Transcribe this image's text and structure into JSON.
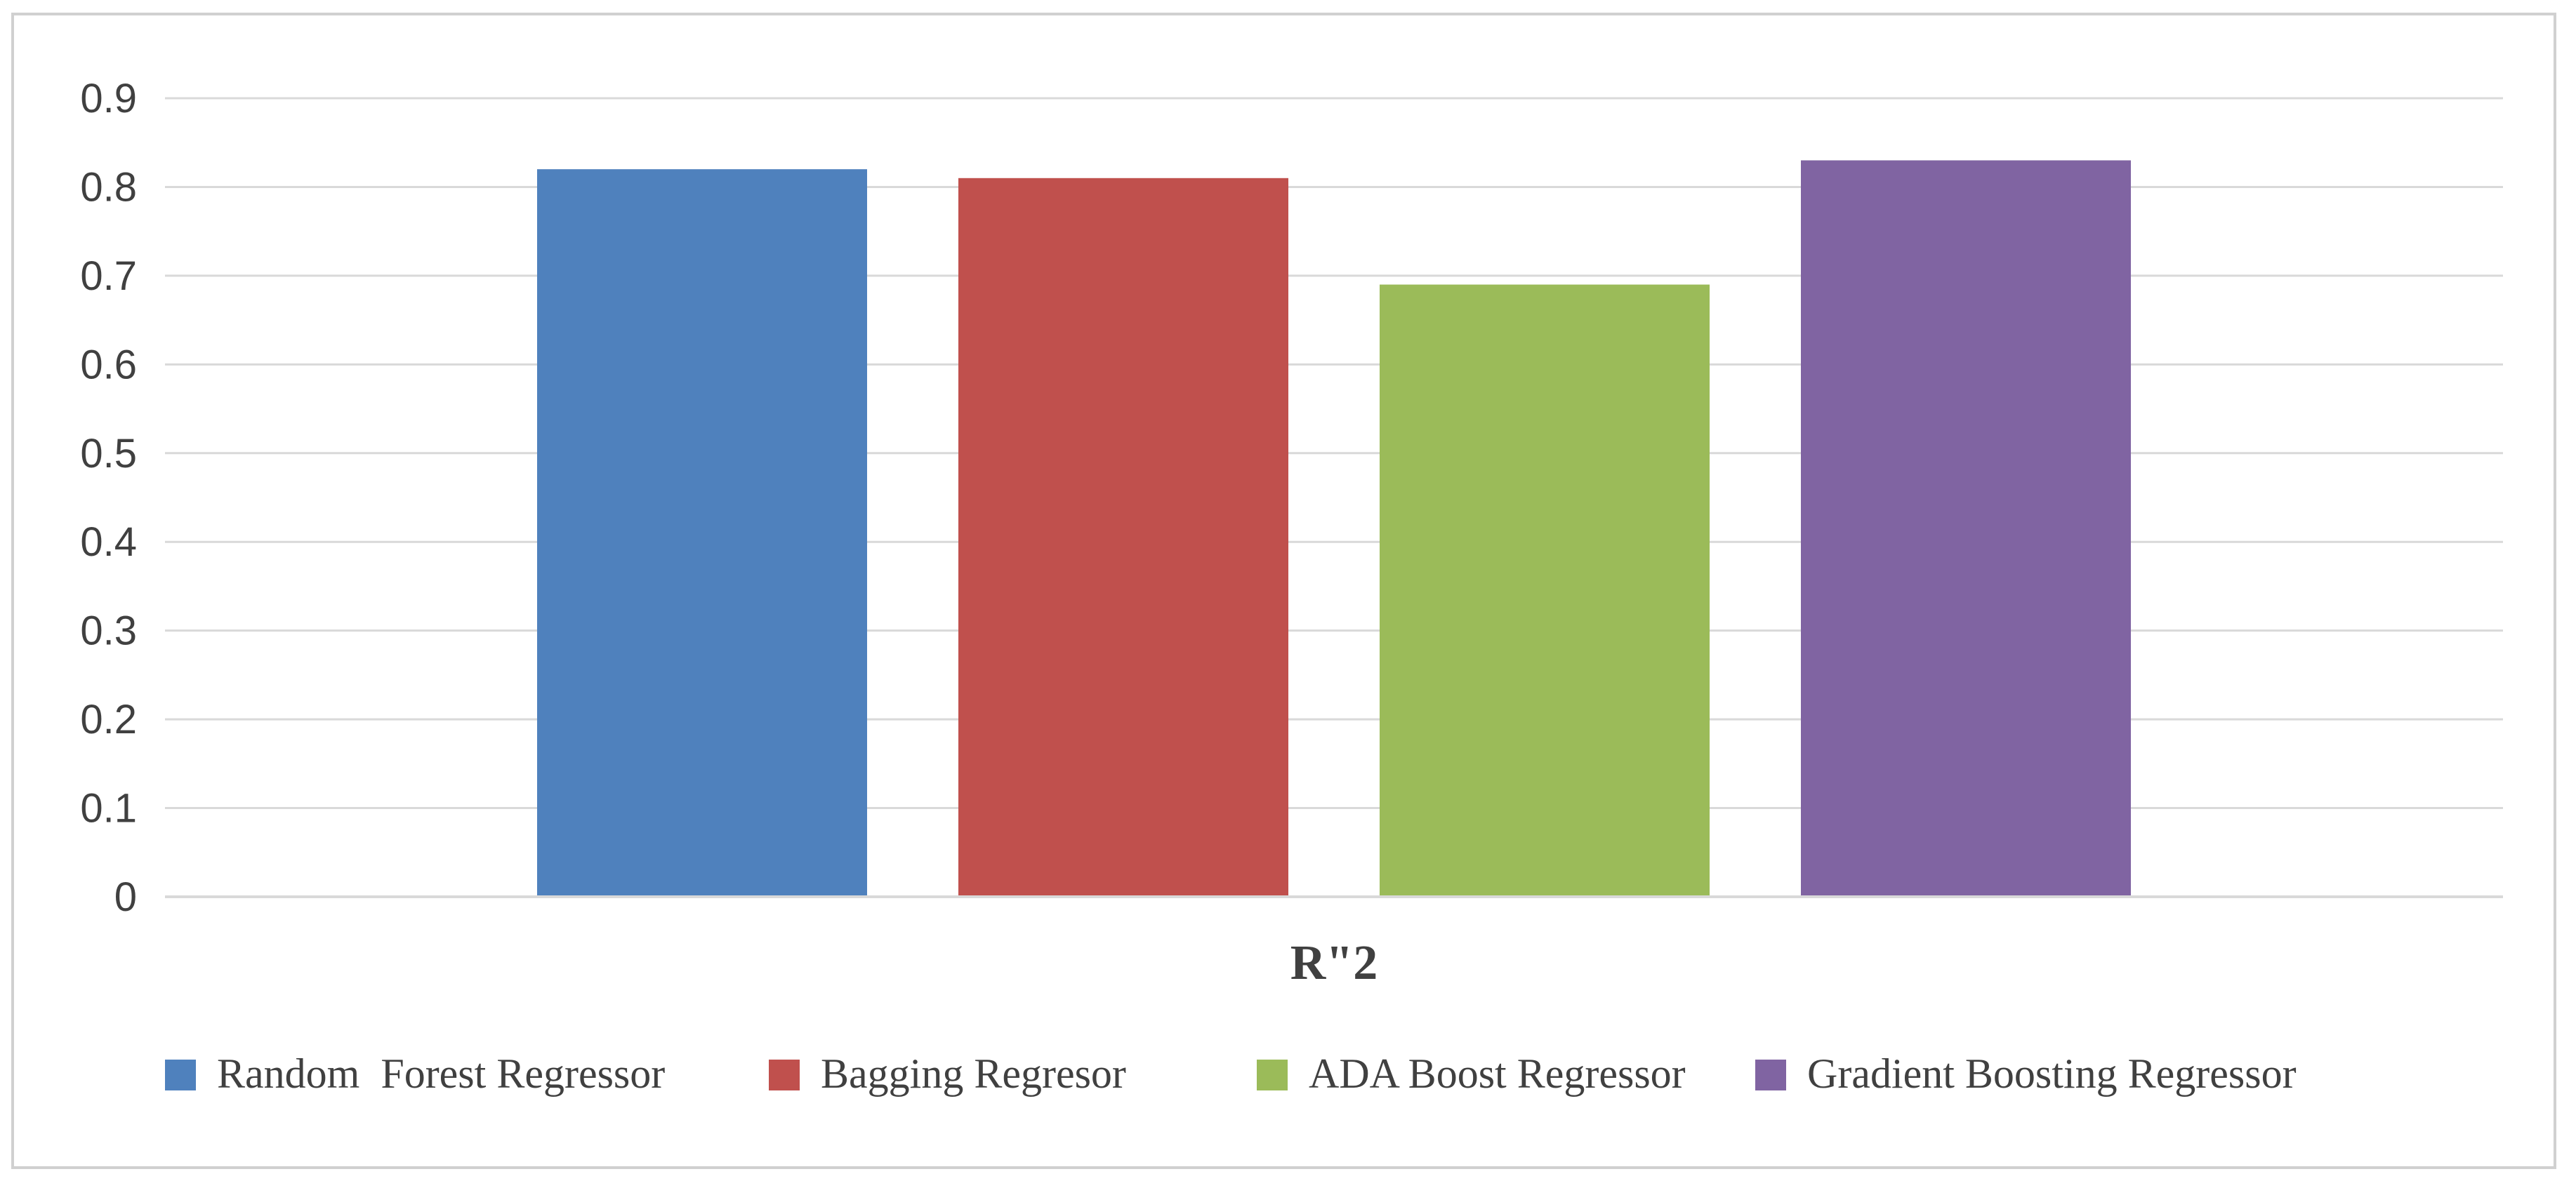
{
  "chart_data": {
    "type": "bar",
    "categories": [
      "R\"2"
    ],
    "series": [
      {
        "name": "Random  Forest Regressor",
        "values": [
          0.82
        ],
        "color": "#4F81BD"
      },
      {
        "name": "Bagging Regresor",
        "values": [
          0.81
        ],
        "color": "#C0504D"
      },
      {
        "name": "ADA Boost Regressor",
        "values": [
          0.69
        ],
        "color": "#9BBB59"
      },
      {
        "name": "Gradient Boosting Regressor",
        "values": [
          0.83
        ],
        "color": "#8064A2"
      }
    ],
    "title": "",
    "xlabel": "",
    "ylabel": "",
    "ylim": [
      0,
      0.9
    ],
    "yticks": [
      "0",
      "0.1",
      "0.2",
      "0.3",
      "0.4",
      "0.5",
      "0.6",
      "0.7",
      "0.8",
      "0.9"
    ],
    "grid": true,
    "legend_position": "bottom",
    "gridline_color": "#d9d9d9"
  }
}
